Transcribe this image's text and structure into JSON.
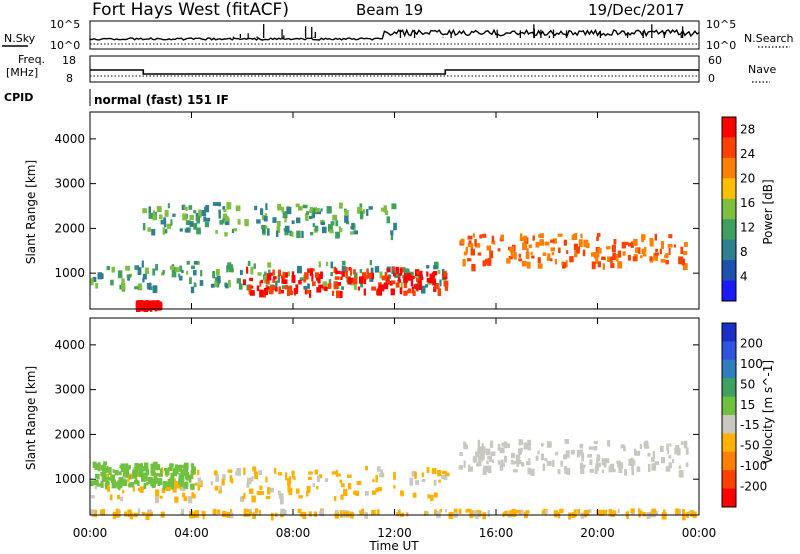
{
  "header": {
    "station": "Fort Hays West (fitACF)",
    "beam": "Beam 19",
    "date": "19/Dec/2017"
  },
  "status_panels": {
    "nsky_label": "N.Sky",
    "nsearch_label": "N.Search",
    "freq_label_1": "Freq.",
    "freq_label_2": "[MHz]",
    "nave_label": "Nave",
    "cpid_label": "CPID",
    "cpid_value": "normal (fast) 151 IF",
    "noise_ticks_left": [
      "10^5",
      "10^0"
    ],
    "noise_ticks_right": [
      "10^5",
      "10^0"
    ],
    "freq_ticks_left": [
      "18",
      "8"
    ],
    "nave_ticks_right": [
      "60",
      "0"
    ]
  },
  "colors": {
    "power_scale": [
      "#1a1aff",
      "#1d4fae",
      "#2f7f8f",
      "#3f9f5f",
      "#7fbf3f",
      "#ffbf00",
      "#ff8000",
      "#ff4000",
      "#ff0000"
    ],
    "velocity_scale": [
      "#1a2fc8",
      "#2f55e0",
      "#2f7fbf",
      "#3fa060",
      "#70c040",
      "#c8c8c0",
      "#ffb000",
      "#ff8000",
      "#ff4000",
      "#ff0000"
    ]
  },
  "chart_data": [
    {
      "type": "heatmap",
      "panel": "power",
      "xlabel": "Time UT",
      "ylabel": "Slant Range [km]",
      "xlim": [
        "00:00",
        "24:00"
      ],
      "ylim": [
        200,
        4600
      ],
      "x_ticks": [
        "00:00",
        "04:00",
        "08:00",
        "12:00",
        "16:00",
        "20:00",
        "00:00"
      ],
      "y_ticks": [
        1000,
        2000,
        3000,
        4000
      ],
      "colorbar": {
        "label": "Power [dB]",
        "ticks": [
          4,
          8,
          12,
          16,
          20,
          24,
          28
        ],
        "range": [
          0,
          30
        ]
      },
      "features": [
        {
          "hours": [
            0.0,
            14.0
          ],
          "range_km": [
            700,
            1300
          ],
          "value": "10-14 dB"
        },
        {
          "hours": [
            6.0,
            14.0
          ],
          "range_km": [
            600,
            1150
          ],
          "value": "22-30 dB"
        },
        {
          "hours": [
            14.5,
            23.5
          ],
          "range_km": [
            1200,
            1900
          ],
          "value": "16-28 dB"
        },
        {
          "hours": [
            2.0,
            12.0
          ],
          "range_km": [
            1900,
            2600
          ],
          "value": "8-12 dB"
        },
        {
          "hours": [
            1.8,
            2.7
          ],
          "range_km": [
            300,
            400
          ],
          "value": "28 dB"
        }
      ]
    },
    {
      "type": "heatmap",
      "panel": "velocity",
      "xlabel": "Time UT",
      "ylabel": "Slant Range [km]",
      "xlim": [
        "00:00",
        "24:00"
      ],
      "ylim": [
        200,
        4600
      ],
      "x_ticks": [
        "00:00",
        "04:00",
        "08:00",
        "12:00",
        "16:00",
        "20:00",
        "00:00"
      ],
      "y_ticks": [
        1000,
        2000,
        3000,
        4000
      ],
      "colorbar": {
        "label": "Velocity [m s^-1]",
        "ticks": [
          200,
          100,
          50,
          15,
          -15,
          -50,
          -100,
          -200
        ],
        "range": [
          -250,
          250
        ]
      },
      "features": [
        {
          "hours": [
            0.0,
            14.0
          ],
          "range_km": [
            600,
            1300
          ],
          "value": "-15 to -50 m/s"
        },
        {
          "hours": [
            14.5,
            23.5
          ],
          "range_km": [
            1200,
            1900
          ],
          "value": "-15 to 15 m/s"
        },
        {
          "hours": [
            0.0,
            4.0
          ],
          "range_km": [
            900,
            1400
          ],
          "value": "15 to 50 m/s"
        },
        {
          "hours": [
            0.0,
            24.0
          ],
          "range_km": [
            250,
            350
          ],
          "value": "-15 to -50 m/s"
        }
      ]
    }
  ]
}
